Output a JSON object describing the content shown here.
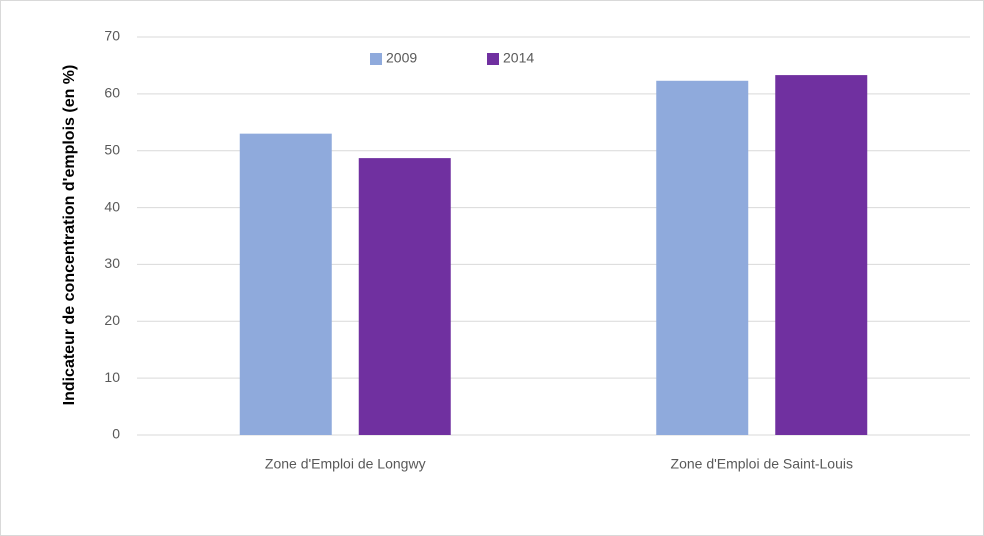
{
  "chart_data": {
    "type": "bar",
    "ylabel": "Indicateur de concentration d'emplois (en %)",
    "categories": [
      "Zone d'Emploi de Longwy",
      "Zone d'Emploi de Saint-Louis"
    ],
    "series": [
      {
        "name": "2009",
        "color": "#8faadc",
        "values": [
          53,
          62.3
        ]
      },
      {
        "name": "2014",
        "color": "#7030a0",
        "values": [
          48.7,
          63.3
        ]
      }
    ],
    "ylim": [
      0,
      70
    ],
    "yticks": [
      0,
      10,
      20,
      30,
      40,
      50,
      60,
      70
    ],
    "grid": true,
    "legend": "top"
  }
}
